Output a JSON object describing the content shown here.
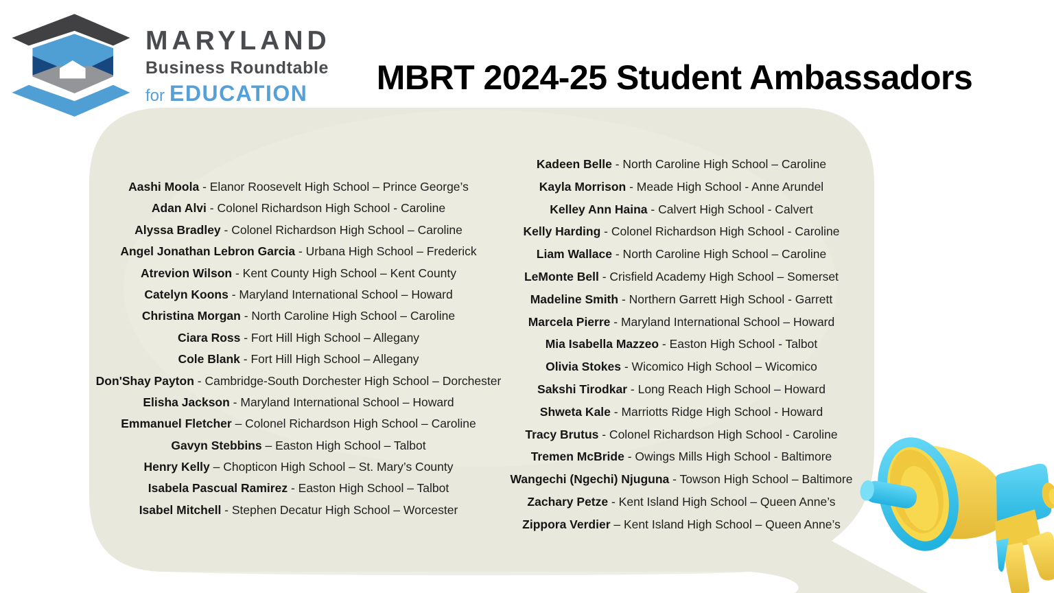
{
  "logo": {
    "title": "MARYLAND",
    "subtitle": "Business Roundtable",
    "for_word": "for",
    "education_word": "EDUCATION",
    "colors": {
      "charcoal": "#414042",
      "gray": "#939598",
      "blue": "#4F9FD5",
      "navy": "#16477E",
      "text_gray": "#4A4B4E",
      "text_blue": "#55A0D7"
    }
  },
  "header": {
    "title": "MBRT 2024-25 Student Ambassadors"
  },
  "bubble": {
    "fill": "#E9E8DC"
  },
  "megaphone": {
    "blue": "#3CC8EF",
    "yellow": "#F8D84E"
  },
  "ambassadors": {
    "left": [
      {
        "name": "Aashi Moola",
        "detail": " - Elanor Roosevelt High School – Prince George’s"
      },
      {
        "name": "Adan Alvi",
        "detail": " - Colonel Richardson High School - Caroline"
      },
      {
        "name": "Alyssa Bradley",
        "detail": " - Colonel Richardson High School – Caroline"
      },
      {
        "name": "Angel Jonathan Lebron Garcia",
        "detail": " - Urbana High School – Frederick"
      },
      {
        "name": "Atrevion Wilson",
        "detail": " - Kent County High School – Kent County"
      },
      {
        "name": "Catelyn Koons",
        "detail": " - Maryland International School – Howard"
      },
      {
        "name": "Christina Morgan",
        "detail": " - North Caroline High School – Caroline"
      },
      {
        "name": "Ciara Ross",
        "detail": " - Fort Hill High School – Allegany"
      },
      {
        "name": "Cole Blank",
        "detail": " - Fort Hill High School – Allegany"
      },
      {
        "name": "Don'Shay Payton",
        "detail": " - Cambridge-South Dorchester High School – Dorchester"
      },
      {
        "name": "Elisha Jackson",
        "detail": " - Maryland International School – Howard"
      },
      {
        "name": "Emmanuel Fletcher",
        "detail": " – Colonel Richardson High School – Caroline"
      },
      {
        "name": "Gavyn Stebbins",
        "detail": " – Easton High School – Talbot"
      },
      {
        "name": "Henry Kelly",
        "detail": " – Chopticon High School – St. Mary’s County"
      },
      {
        "name": "Isabela Pascual Ramirez",
        "detail": " - Easton High School – Talbot"
      },
      {
        "name": "Isabel Mitchell",
        "detail": " - Stephen Decatur High School – Worcester"
      }
    ],
    "right": [
      {
        "name": "Kadeen Belle",
        "detail": " - North Caroline High School – Caroline"
      },
      {
        "name": "Kayla Morrison",
        "detail": " - Meade High School - Anne Arundel"
      },
      {
        "name": "Kelley Ann Haina",
        "detail": " - Calvert High School - Calvert"
      },
      {
        "name": "Kelly Harding",
        "detail": " - Colonel Richardson High School - Caroline"
      },
      {
        "name": "Liam Wallace",
        "detail": " - North Caroline High School – Caroline"
      },
      {
        "name": "LeMonte Bell",
        "detail": " - Crisfield Academy High School – Somerset"
      },
      {
        "name": "Madeline Smith",
        "detail": " - Northern Garrett High School - Garrett"
      },
      {
        "name": "Marcela Pierre",
        "detail": " - Maryland International School – Howard"
      },
      {
        "name": "Mia Isabella Mazzeo",
        "detail": " - Easton High School - Talbot"
      },
      {
        "name": "Olivia Stokes",
        "detail": " - Wicomico High School – Wicomico"
      },
      {
        "name": "Sakshi Tirodkar",
        "detail": " - Long Reach High School – Howard"
      },
      {
        "name": "Shweta Kale",
        "detail": " - Marriotts Ridge High School - Howard"
      },
      {
        "name": "Tracy Brutus",
        "detail": " - Colonel Richardson High School - Caroline"
      },
      {
        "name": "Tremen McBride",
        "detail": " - Owings Mills High School - Baltimore"
      },
      {
        "name": "Wangechi (Ngechi) Njuguna",
        "detail": " - Towson High School – Baltimore"
      },
      {
        "name": "Zachary Petze",
        "detail": " - Kent Island High School – Queen Anne’s"
      },
      {
        "name": "Zippora Verdier",
        "detail": " – Kent Island High School – Queen Anne’s"
      }
    ]
  }
}
